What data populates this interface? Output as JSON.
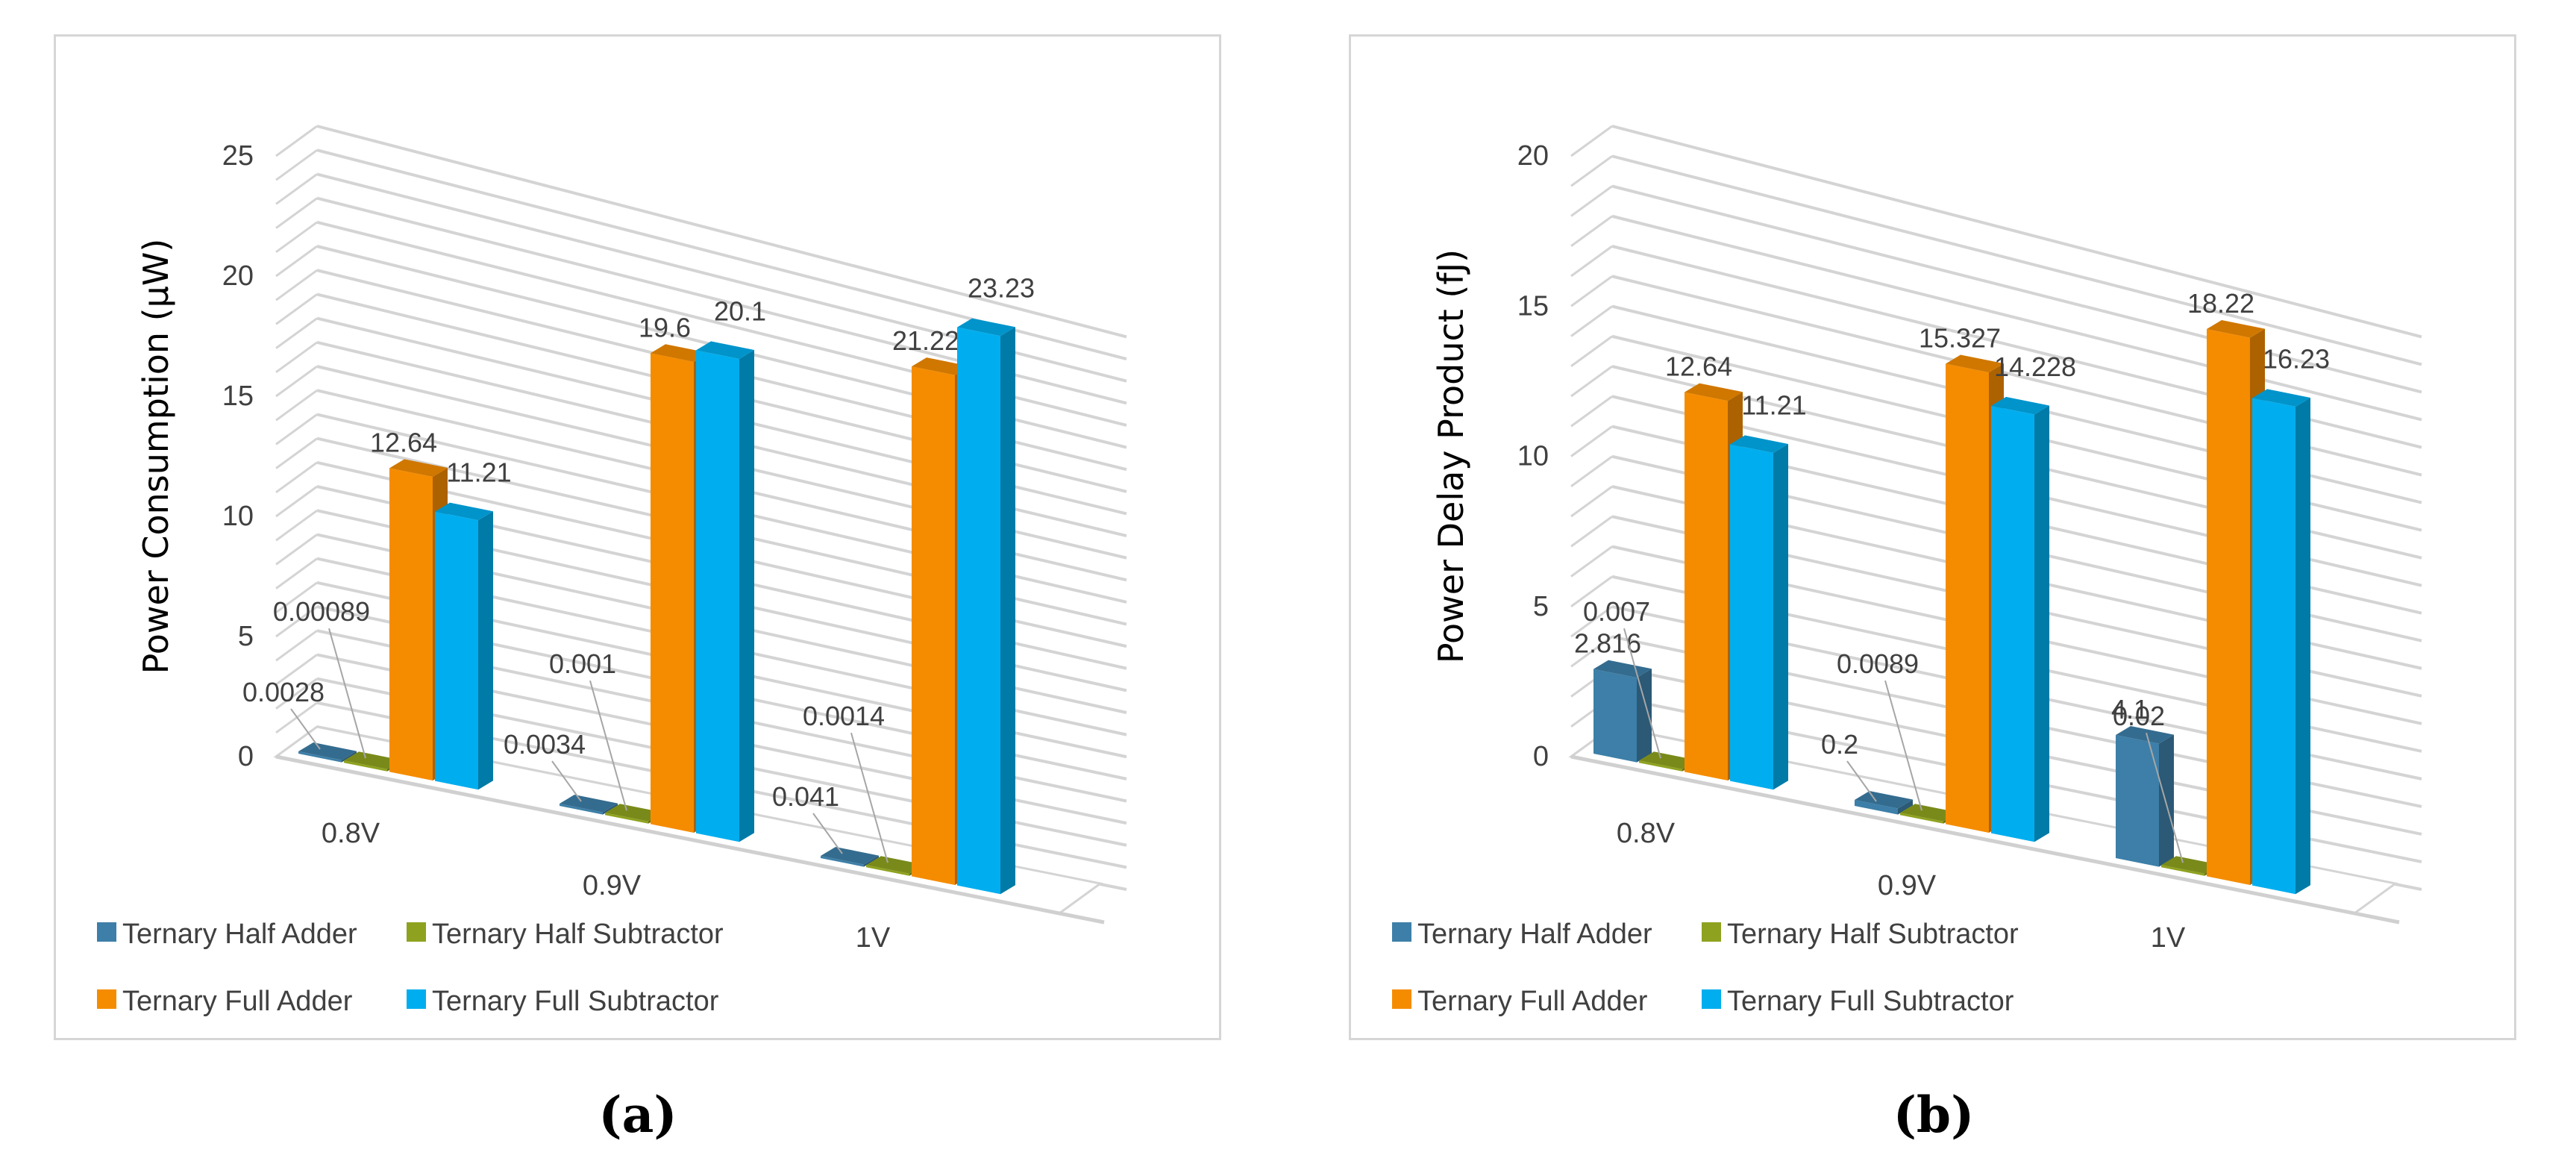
{
  "legend": [
    {
      "name": "Ternary Half Adder",
      "color": "#3d7fa8"
    },
    {
      "name": "Ternary Half Subtractor",
      "color": "#8fa21f"
    },
    {
      "name": "Ternary Full Adder",
      "color": "#f58c00"
    },
    {
      "name": "Ternary Full Subtractor",
      "color": "#00aeef"
    }
  ],
  "panel_labels": {
    "a": "(a)",
    "b": "(b)"
  },
  "chart_data": [
    {
      "type": "bar",
      "title": "",
      "ylabel": "Power Consumption  (µW)",
      "xlabel": "",
      "ylim": [
        0,
        25
      ],
      "yticks": [
        "0",
        "5",
        "10",
        "15",
        "20",
        "25"
      ],
      "categories": [
        "0.8V",
        "0.9V",
        "1V"
      ],
      "grid": true,
      "legend_position": "bottom",
      "series": [
        {
          "name": "Ternary Half Adder",
          "values": [
            0.0028,
            0.0034,
            0.041
          ],
          "labels": [
            "0.0028",
            "0.0034",
            "0.041"
          ]
        },
        {
          "name": "Ternary Half Subtractor",
          "values": [
            0.00089,
            0.001,
            0.0014
          ],
          "labels": [
            "0.00089",
            "0.001",
            "0.0014"
          ]
        },
        {
          "name": "Ternary Full Adder",
          "values": [
            12.64,
            19.6,
            21.22
          ],
          "labels": [
            "12.64",
            "19.6",
            "21.22"
          ]
        },
        {
          "name": "Ternary Full Subtractor",
          "values": [
            11.21,
            20.1,
            23.23
          ],
          "labels": [
            "11.21",
            "20.1",
            "23.23"
          ]
        }
      ]
    },
    {
      "type": "bar",
      "title": "",
      "ylabel": "Power Delay Product  (fJ)",
      "xlabel": "",
      "ylim": [
        0,
        20
      ],
      "yticks": [
        "0",
        "5",
        "10",
        "15",
        "20"
      ],
      "categories": [
        "0.8V",
        "0.9V",
        "1V"
      ],
      "grid": true,
      "legend_position": "bottom",
      "series": [
        {
          "name": "Ternary Half Adder",
          "values": [
            2.816,
            0.2,
            4.1
          ],
          "labels": [
            "2.816",
            "0.2",
            "4.1"
          ]
        },
        {
          "name": "Ternary Half Subtractor",
          "values": [
            0.007,
            0.0089,
            0.02
          ],
          "labels": [
            "0.007",
            "0.0089",
            "0.02"
          ]
        },
        {
          "name": "Ternary Full Adder",
          "values": [
            12.64,
            15.327,
            18.22
          ],
          "labels": [
            "12.64",
            "15.327",
            "18.22"
          ]
        },
        {
          "name": "Ternary Full Subtractor",
          "values": [
            11.21,
            14.228,
            16.23
          ],
          "labels": [
            "11.21",
            "14.228",
            "16.23"
          ]
        }
      ]
    }
  ]
}
